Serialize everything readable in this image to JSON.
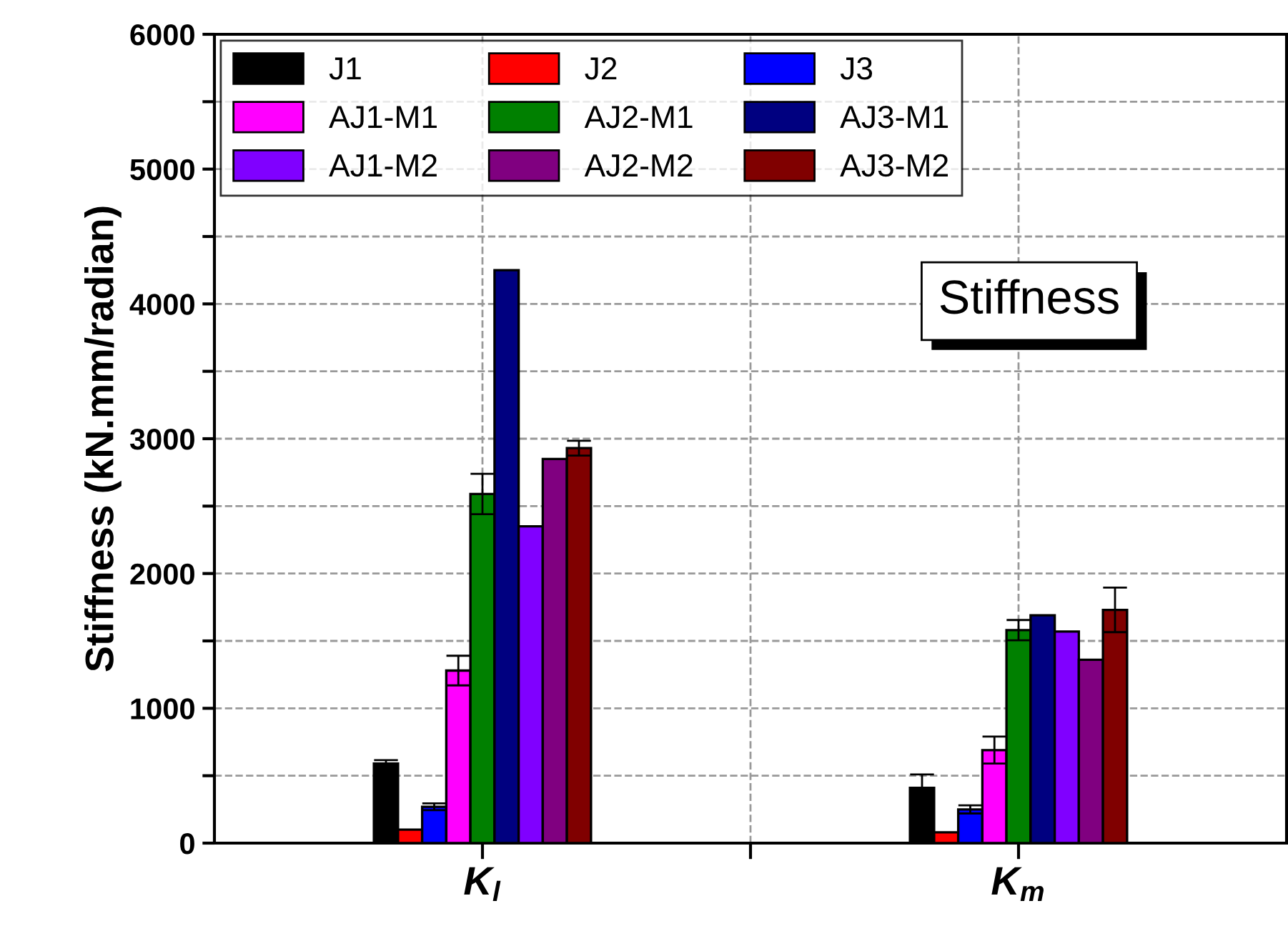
{
  "chart_data": {
    "type": "bar",
    "ylabel": "Stiffness (kN.mm/radian)",
    "categories": [
      "K$_{l}$",
      "K$_{m}$"
    ],
    "series": [
      {
        "name": "J1",
        "color": "#000000",
        "values": [
          590,
          410
        ],
        "errors": [
          25,
          100
        ]
      },
      {
        "name": "J2",
        "color": "#ff0000",
        "values": [
          100,
          80
        ],
        "errors": [
          null,
          null
        ]
      },
      {
        "name": "J3",
        "color": "#0000ff",
        "values": [
          270,
          250
        ],
        "errors": [
          25,
          30
        ]
      },
      {
        "name": "AJ1-M1",
        "color": "#ff00ff",
        "values": [
          1280,
          690
        ],
        "errors": [
          110,
          100
        ]
      },
      {
        "name": "AJ2-M1",
        "color": "#008000",
        "values": [
          2590,
          1580
        ],
        "errors": [
          150,
          75
        ]
      },
      {
        "name": "AJ3-M1",
        "color": "#000080",
        "values": [
          4250,
          1690
        ],
        "errors": [
          null,
          null
        ]
      },
      {
        "name": "AJ1-M2",
        "color": "#8000ff",
        "values": [
          2350,
          1570
        ],
        "errors": [
          null,
          null
        ]
      },
      {
        "name": "AJ2-M2",
        "color": "#800080",
        "values": [
          2850,
          1360
        ],
        "errors": [
          null,
          null
        ]
      },
      {
        "name": "AJ3-M2",
        "color": "#800000",
        "values": [
          2930,
          1730
        ],
        "errors": [
          55,
          165
        ]
      }
    ],
    "ylim": [
      0,
      6000
    ],
    "yticks": [
      0,
      {
        "value": 500,
        "label": null
      },
      1000,
      {
        "value": 1500,
        "label": null
      },
      2000,
      {
        "value": 2500,
        "label": null
      },
      3000,
      {
        "value": 3500,
        "label": null
      },
      4000,
      {
        "value": 4500,
        "label": null
      },
      5000,
      {
        "value": 5500,
        "label": null
      },
      6000
    ],
    "grid": true,
    "legend": "top left",
    "annotations": [
      "Stiffness"
    ]
  }
}
